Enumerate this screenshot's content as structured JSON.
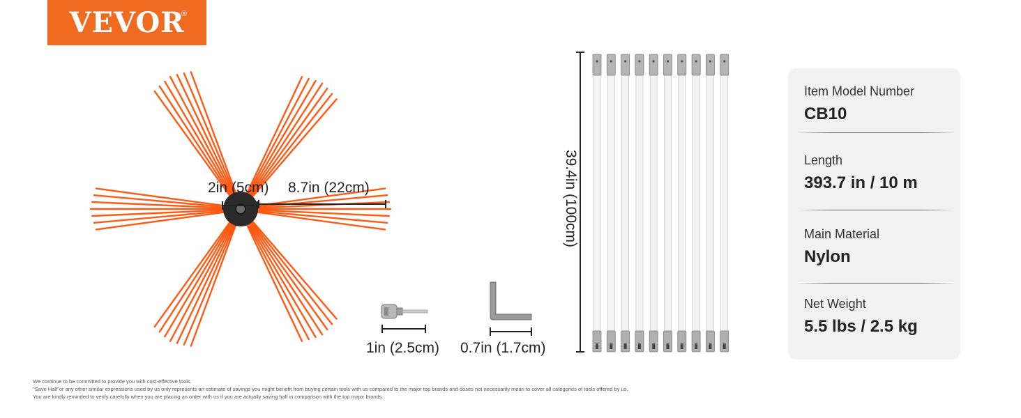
{
  "brand": {
    "name": "VEVOR",
    "registered_mark": "®",
    "color": "#f06a1f"
  },
  "dimensions": {
    "hub_diameter": "2in (5cm)",
    "bristle_length": "8.7in (22cm)",
    "rod_length": "39.4in (100cm)",
    "adapter_length": "1in (2.5cm)",
    "wrench_length": "0.7in (1.7cm)"
  },
  "rods": {
    "count": 10
  },
  "specs": [
    {
      "label": "Item Model Number",
      "value": "CB10"
    },
    {
      "label": "Length",
      "value": "393.7 in / 10 m"
    },
    {
      "label": "Main Material",
      "value": "Nylon"
    },
    {
      "label": "Net Weight",
      "value": "5.5 lbs / 2.5 kg"
    }
  ],
  "footnote": {
    "line1": "We continue to be committed to provide you with cost-effective tools.",
    "line2": "\"Save Half\"or any other similar expressions used by us only represents an estimate of savings you might benefit from buying certain tools with us compared to the major top brands and doses not necessarily mean to cover all categories of tools offered by us.",
    "line3": "You are kindly reminded to verify carefully when you are placing an order with us if you are actually saving half in comparison with the top major brands."
  },
  "colors": {
    "bristle": "#ff5a14",
    "hub": "#2b2b2b",
    "card_bg": "#f2f2f2",
    "rod": "#f3f3f3"
  }
}
